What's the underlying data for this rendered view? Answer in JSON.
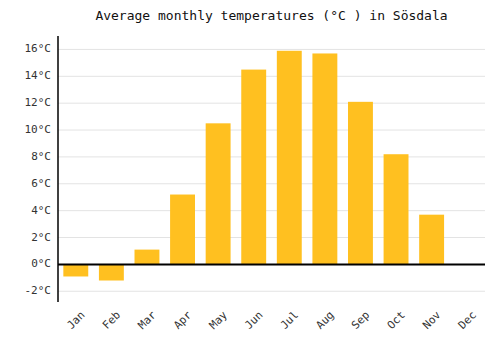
{
  "chart_data": {
    "type": "bar",
    "title": "Average monthly temperatures (°C ) in Sösdala",
    "categories": [
      "Jan",
      "Feb",
      "Mar",
      "Apr",
      "May",
      "Jun",
      "Jul",
      "Aug",
      "Sep",
      "Oct",
      "Nov",
      "Dec"
    ],
    "values": [
      -0.9,
      -1.2,
      1.1,
      5.2,
      10.5,
      14.5,
      15.9,
      15.7,
      12.1,
      8.2,
      3.7,
      0.0
    ],
    "color": "#FFC020",
    "ylim": [
      -2.8,
      17.0
    ],
    "yticks": [
      {
        "value": -2,
        "label": "-2°C"
      },
      {
        "value": 0,
        "label": "0°C"
      },
      {
        "value": 2,
        "label": "2°C"
      },
      {
        "value": 4,
        "label": "4°C"
      },
      {
        "value": 6,
        "label": "6°C"
      },
      {
        "value": 8,
        "label": "8°C"
      },
      {
        "value": 10,
        "label": "10°C"
      },
      {
        "value": 12,
        "label": "12°C"
      },
      {
        "value": 14,
        "label": "14°C"
      },
      {
        "value": 16,
        "label": "16°C"
      }
    ],
    "grid": true
  }
}
